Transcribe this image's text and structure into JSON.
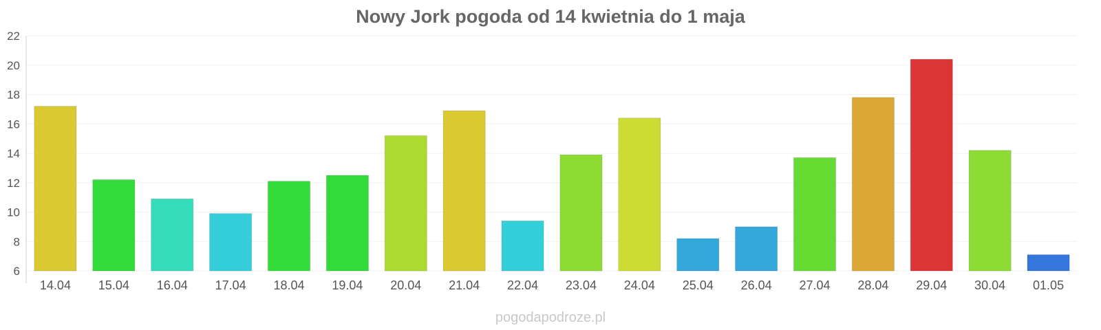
{
  "chart_data": {
    "type": "bar",
    "title": "Nowy Jork pogoda od 14 kwietnia do 1 maja",
    "xlabel": "",
    "ylabel": "",
    "ylim": [
      6,
      22
    ],
    "yticks": [
      6,
      8,
      10,
      12,
      14,
      16,
      18,
      20,
      22
    ],
    "grid": true,
    "categories": [
      "14.04",
      "15.04",
      "16.04",
      "17.04",
      "18.04",
      "19.04",
      "20.04",
      "21.04",
      "22.04",
      "23.04",
      "24.04",
      "25.04",
      "26.04",
      "27.04",
      "28.04",
      "29.04",
      "30.04",
      "01.05"
    ],
    "values": [
      17.2,
      12.2,
      10.9,
      9.9,
      12.1,
      12.5,
      15.2,
      16.9,
      9.4,
      13.9,
      16.4,
      8.2,
      9.0,
      13.7,
      17.8,
      20.4,
      14.2,
      7.1
    ],
    "colors": [
      "#dbc931",
      "#31dc3b",
      "#35dcbb",
      "#34cfdb",
      "#32dd3a",
      "#31dc3a",
      "#acdc31",
      "#dbc931",
      "#33cfdb",
      "#8cdc34",
      "#cddc33",
      "#34a7db",
      "#35a7db",
      "#66dc33",
      "#dca835",
      "#db3535",
      "#8cdc34",
      "#3476db"
    ]
  },
  "watermark": "pogodapodroze.pl"
}
